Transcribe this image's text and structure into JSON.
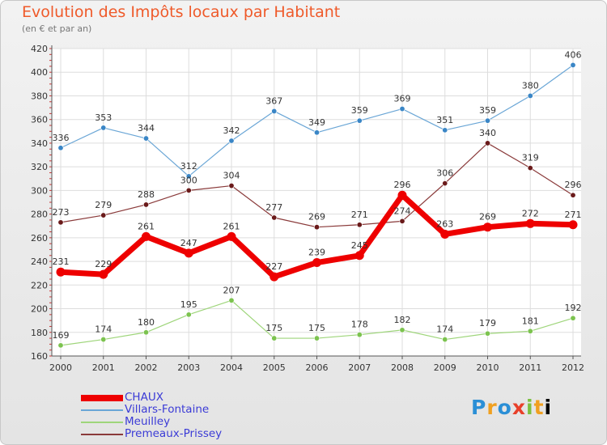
{
  "header": {
    "title": "Evolution des Impôts locaux par Habitant",
    "subtitle": "(en € et par an)"
  },
  "logo": {
    "text": "Proxiti",
    "letters": [
      "P",
      "r",
      "o",
      "x",
      "i",
      "t",
      "i"
    ]
  },
  "chart_data": {
    "type": "line",
    "title": "Evolution des Impôts locaux par Habitant",
    "subtitle": "(en € et par an)",
    "xlabel": "",
    "ylabel": "",
    "categories": [
      "2000",
      "2001",
      "2002",
      "2003",
      "2004",
      "2005",
      "2006",
      "2007",
      "2008",
      "2009",
      "2010",
      "2011",
      "2012"
    ],
    "ylim": [
      160,
      420
    ],
    "yticks": [
      160,
      180,
      200,
      220,
      240,
      260,
      280,
      300,
      320,
      340,
      360,
      380,
      400,
      420
    ],
    "grid": true,
    "legend_position": "bottom-left",
    "series": [
      {
        "name": "CHAUX",
        "color": "#ee0000",
        "marker": "#ee0000",
        "emphasis": true,
        "values": [
          231,
          229,
          261,
          247,
          261,
          227,
          239,
          245,
          296,
          263,
          269,
          272,
          271
        ]
      },
      {
        "name": "Villars-Fontaine",
        "color": "#6aa6d6",
        "marker": "#3a86c6",
        "emphasis": false,
        "values": [
          336,
          353,
          344,
          312,
          342,
          367,
          349,
          359,
          369,
          351,
          359,
          380,
          406
        ]
      },
      {
        "name": "Meuilley",
        "color": "#9ed57a",
        "marker": "#7cc34f",
        "emphasis": false,
        "values": [
          169,
          174,
          180,
          195,
          207,
          175,
          175,
          178,
          182,
          174,
          179,
          181,
          192
        ]
      },
      {
        "name": "Premeaux-Prissey",
        "color": "#8a3a3a",
        "marker": "#6a1a1a",
        "emphasis": false,
        "values": [
          273,
          279,
          288,
          300,
          304,
          277,
          269,
          271,
          274,
          306,
          340,
          319,
          296
        ]
      }
    ]
  }
}
